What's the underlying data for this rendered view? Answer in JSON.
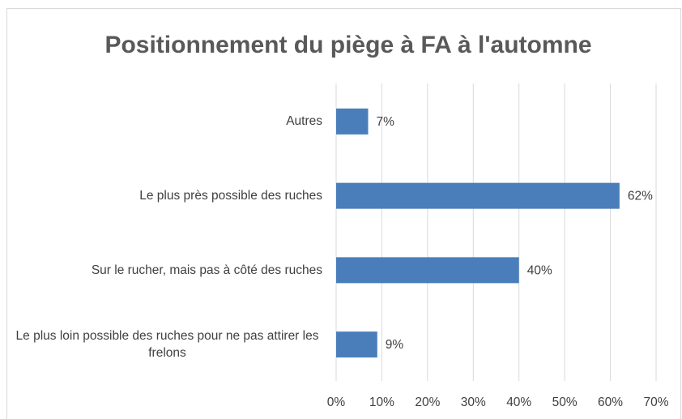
{
  "chart_data": {
    "type": "barh",
    "title": "Positionnement du piège à FA à l'automne",
    "categories": [
      "Autres",
      "Le plus près possible des ruches",
      "Sur le rucher, mais pas à côté des ruches",
      "Le plus loin possible des ruches pour ne pas attirer les frelons"
    ],
    "values": [
      7,
      62,
      40,
      9
    ],
    "value_labels": [
      "7%",
      "62%",
      "40%",
      "9%"
    ],
    "color": "#4a7ebb",
    "xlim": [
      0,
      70
    ],
    "xticks": [
      {
        "value": 0,
        "label": "0%"
      },
      {
        "value": 10,
        "label": "10%"
      },
      {
        "value": 20,
        "label": "20%"
      },
      {
        "value": 30,
        "label": "30%"
      },
      {
        "value": 40,
        "label": "40%"
      },
      {
        "value": 50,
        "label": "50%"
      },
      {
        "value": 60,
        "label": "60%"
      },
      {
        "value": 70,
        "label": "70%"
      }
    ],
    "grid": true
  }
}
